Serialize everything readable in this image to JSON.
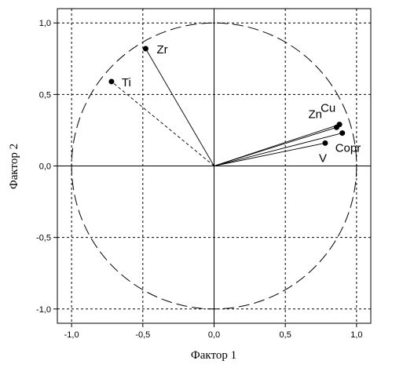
{
  "chart_data": {
    "type": "scatter",
    "title": "",
    "xlabel": "Фактор 1",
    "ylabel": "Фактор 2",
    "xlim": [
      -1.1,
      1.1
    ],
    "ylim": [
      -1.1,
      1.1
    ],
    "xticks": [
      -1.0,
      -0.5,
      0.0,
      0.5,
      1.0
    ],
    "yticks": [
      -1.0,
      -0.5,
      0.0,
      0.5,
      1.0
    ],
    "xtick_labels": [
      "-1,0",
      "-0,5",
      "0,0",
      "0,5",
      "1,0"
    ],
    "ytick_labels": [
      "-1,0",
      "-0,5",
      "0,0",
      "0,5",
      "1,0"
    ],
    "grid": true,
    "unit_circle": true,
    "points": [
      {
        "label": "Zr",
        "x": -0.48,
        "y": 0.82,
        "vector": "solid"
      },
      {
        "label": "Ti",
        "x": -0.72,
        "y": 0.59,
        "vector": "dashed"
      },
      {
        "label": "Cu",
        "x": 0.88,
        "y": 0.29,
        "vector": "solid"
      },
      {
        "label": "Zn",
        "x": 0.86,
        "y": 0.27,
        "vector": "solid"
      },
      {
        "label": "Copr",
        "x": 0.9,
        "y": 0.23,
        "vector": "solid"
      },
      {
        "label": "V",
        "x": 0.78,
        "y": 0.16,
        "vector": "solid"
      }
    ]
  }
}
